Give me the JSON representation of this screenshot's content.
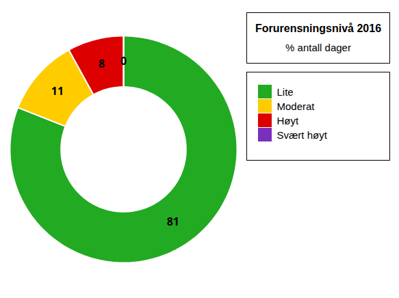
{
  "chart_data": {
    "type": "donut",
    "title": "Forurensningsnivå 2016",
    "subtitle": "% antall dager",
    "categories": [
      "Lite",
      "Moderat",
      "Høyt",
      "Svært høyt"
    ],
    "values": [
      81,
      11,
      8,
      0
    ],
    "colors": [
      "#22aa22",
      "#ffcc00",
      "#dd0000",
      "#7b2fbe"
    ],
    "data_labels": true,
    "legend": "right"
  }
}
